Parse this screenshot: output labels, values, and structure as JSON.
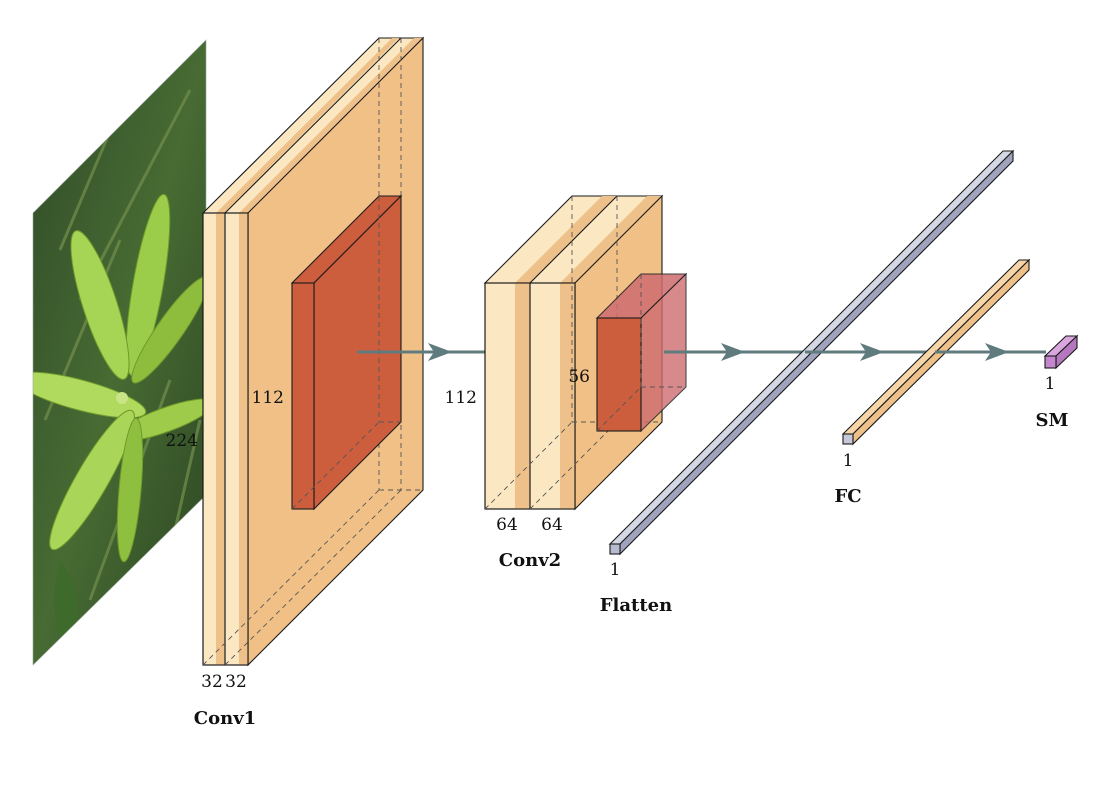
{
  "diagram": {
    "input": {
      "size": "224"
    },
    "layers": [
      {
        "id": "conv1",
        "title": "Conv1",
        "size": "112",
        "channels": [
          "32",
          "32"
        ]
      },
      {
        "id": "pool1",
        "size": "112"
      },
      {
        "id": "conv2",
        "title": "Conv2",
        "size": "56",
        "channels": [
          "64",
          "64"
        ]
      },
      {
        "id": "flatten",
        "title": "Flatten",
        "size": "1"
      },
      {
        "id": "fc",
        "title": "FC",
        "size": "1"
      },
      {
        "id": "softmax",
        "title": "SM",
        "size": "1"
      }
    ]
  },
  "colors": {
    "conv_light": "#FBE8C3",
    "conv_band": "#EFC18A",
    "conv_body": "#F0C087",
    "pool": "#CC5E3E",
    "pool_light": "#CE6C6F",
    "flatten": "#B7BBD0",
    "fc": "#EFC18A",
    "softmax": "#C486CC",
    "arrow": "#5F7B7E"
  }
}
